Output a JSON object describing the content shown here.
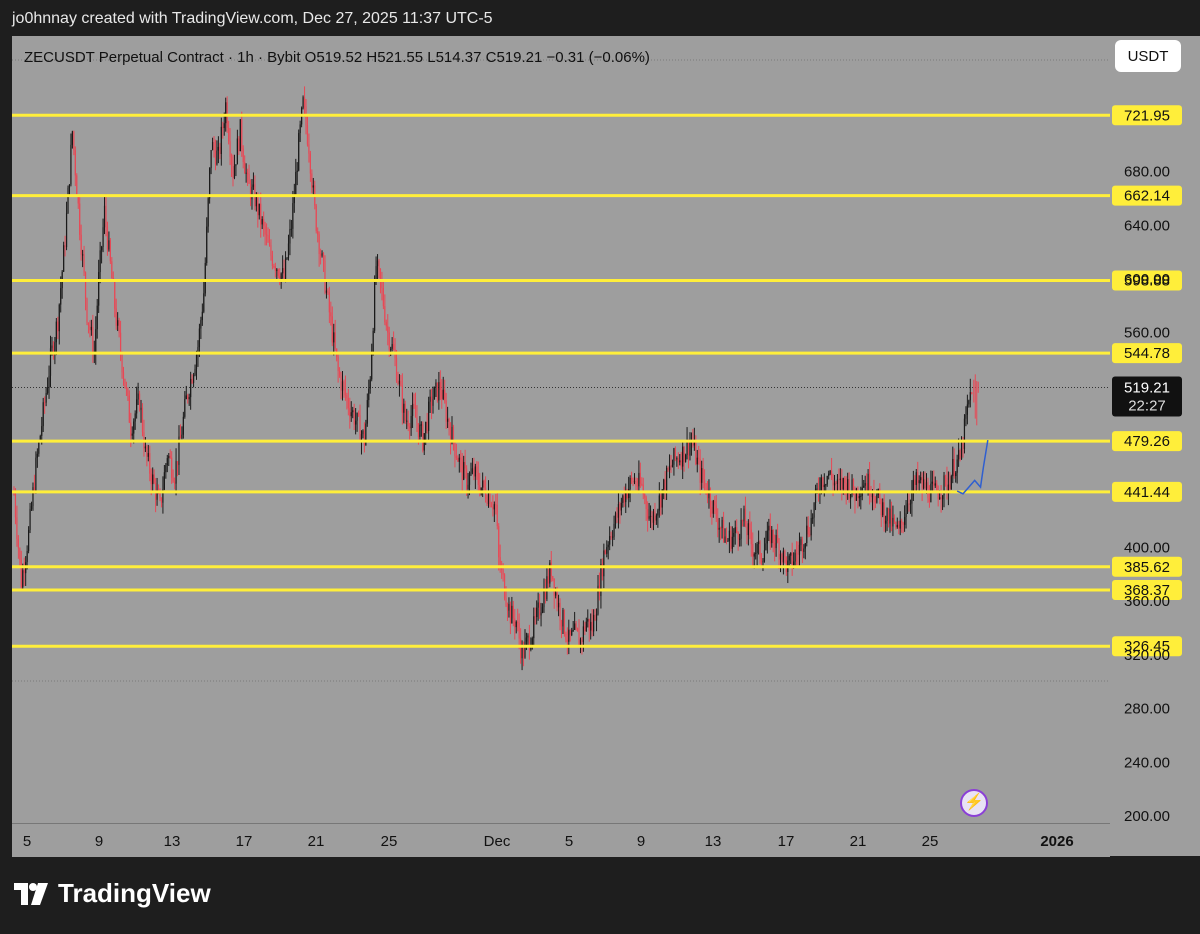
{
  "header": {
    "text": "jo0hnnay created with TradingView.com, Dec 27, 2025 11:37 UTC-5"
  },
  "symbol_line": {
    "text": "ZECUSDT Perpetual Contract · 1h · Bybit   O519.52   H521.55   L514.37   C519.21   −0.31 (−0.06%)"
  },
  "currency_button": {
    "label": "USDT"
  },
  "footer": {
    "brand": "TradingView"
  },
  "icons": {
    "bolt": "lightning-bolt-icon",
    "logo": "tradingview-logo-icon"
  },
  "colors": {
    "plot_bg": "#9e9e9e",
    "level_line": "#ffee3a",
    "candle_up": "#1a1a1a",
    "candle_down": "#e84855",
    "projection": "#2f5fd0",
    "price_tag_bg": "#111111"
  },
  "chart_data": {
    "type": "candlestick",
    "symbol": "ZECUSDT",
    "interval": "1h",
    "exchange": "Bybit",
    "ylim": [
      200,
      760
    ],
    "yticks": [
      "680.00",
      "640.00",
      "600.00",
      "560.00",
      "400.00",
      "360.00",
      "320.00",
      "280.00",
      "240.00",
      "200.00"
    ],
    "xticks": [
      "5",
      "9",
      "13",
      "17",
      "21",
      "25",
      "Dec",
      "5",
      "9",
      "13",
      "17",
      "21",
      "25",
      "2026"
    ],
    "levels": [
      "721.95",
      "662.14",
      "598.88",
      "544.78",
      "479.26",
      "441.44",
      "385.62",
      "368.37",
      "326.45"
    ],
    "last_price": {
      "value": "519.21",
      "countdown": "22:27"
    },
    "ohlc": {
      "open": 519.52,
      "high": 521.55,
      "low": 514.37,
      "close": 519.21,
      "change": -0.31,
      "change_pct": -0.06
    },
    "price_path": [
      [
        0,
        440
      ],
      [
        5,
        375
      ],
      [
        10,
        410
      ],
      [
        15,
        460
      ],
      [
        20,
        500
      ],
      [
        25,
        540
      ],
      [
        30,
        570
      ],
      [
        35,
        630
      ],
      [
        40,
        710
      ],
      [
        45,
        640
      ],
      [
        50,
        575
      ],
      [
        55,
        545
      ],
      [
        58,
        600
      ],
      [
        62,
        650
      ],
      [
        66,
        610
      ],
      [
        70,
        570
      ],
      [
        75,
        530
      ],
      [
        80,
        490
      ],
      [
        86,
        510
      ],
      [
        90,
        470
      ],
      [
        95,
        450
      ],
      [
        100,
        430
      ],
      [
        105,
        470
      ],
      [
        110,
        455
      ],
      [
        114,
        480
      ],
      [
        118,
        510
      ],
      [
        120,
        520
      ],
      [
        126,
        550
      ],
      [
        130,
        590
      ],
      [
        135,
        700
      ],
      [
        140,
        690
      ],
      [
        145,
        730
      ],
      [
        150,
        680
      ],
      [
        155,
        710
      ],
      [
        160,
        670
      ],
      [
        165,
        660
      ],
      [
        170,
        640
      ],
      [
        175,
        620
      ],
      [
        180,
        610
      ],
      [
        185,
        600
      ],
      [
        190,
        640
      ],
      [
        195,
        700
      ],
      [
        198,
        730
      ],
      [
        202,
        700
      ],
      [
        206,
        650
      ],
      [
        210,
        620
      ],
      [
        214,
        590
      ],
      [
        218,
        560
      ],
      [
        222,
        530
      ],
      [
        228,
        510
      ],
      [
        232,
        500
      ],
      [
        236,
        490
      ],
      [
        240,
        480
      ],
      [
        244,
        530
      ],
      [
        248,
        610
      ],
      [
        252,
        590
      ],
      [
        256,
        560
      ],
      [
        260,
        545
      ],
      [
        264,
        520
      ],
      [
        268,
        495
      ],
      [
        274,
        500
      ],
      [
        280,
        480
      ],
      [
        286,
        510
      ],
      [
        292,
        520
      ],
      [
        298,
        490
      ],
      [
        302,
        475
      ],
      [
        306,
        460
      ],
      [
        310,
        450
      ],
      [
        315,
        455
      ],
      [
        320,
        445
      ],
      [
        325,
        440
      ],
      [
        330,
        430
      ],
      [
        332,
        390
      ],
      [
        336,
        370
      ],
      [
        340,
        350
      ],
      [
        344,
        345
      ],
      [
        348,
        320
      ],
      [
        352,
        330
      ],
      [
        356,
        340
      ],
      [
        360,
        355
      ],
      [
        364,
        370
      ],
      [
        368,
        385
      ],
      [
        372,
        360
      ],
      [
        376,
        345
      ],
      [
        380,
        330
      ],
      [
        384,
        335
      ],
      [
        388,
        330
      ],
      [
        392,
        345
      ],
      [
        396,
        340
      ],
      [
        400,
        365
      ],
      [
        404,
        395
      ],
      [
        408,
        410
      ],
      [
        412,
        420
      ],
      [
        418,
        440
      ],
      [
        424,
        450
      ],
      [
        430,
        445
      ],
      [
        436,
        420
      ],
      [
        442,
        435
      ],
      [
        448,
        455
      ],
      [
        452,
        465
      ],
      [
        458,
        470
      ],
      [
        464,
        480
      ],
      [
        470,
        455
      ],
      [
        476,
        440
      ],
      [
        482,
        420
      ],
      [
        488,
        405
      ],
      [
        494,
        410
      ],
      [
        500,
        420
      ],
      [
        506,
        400
      ],
      [
        512,
        395
      ],
      [
        518,
        410
      ],
      [
        524,
        400
      ],
      [
        530,
        385
      ],
      [
        536,
        395
      ],
      [
        540,
        405
      ],
      [
        546,
        420
      ],
      [
        552,
        450
      ],
      [
        558,
        455
      ],
      [
        564,
        445
      ],
      [
        570,
        448
      ],
      [
        576,
        440
      ],
      [
        582,
        450
      ],
      [
        588,
        445
      ],
      [
        594,
        430
      ],
      [
        600,
        420
      ],
      [
        606,
        410
      ],
      [
        612,
        435
      ],
      [
        618,
        448
      ],
      [
        624,
        445
      ],
      [
        630,
        440
      ],
      [
        636,
        445
      ],
      [
        640,
        448
      ],
      [
        644,
        462
      ],
      [
        648,
        465
      ],
      [
        652,
        495
      ],
      [
        656,
        520
      ]
    ],
    "projection_path": [
      [
        646,
        442
      ],
      [
        650,
        440
      ],
      [
        654,
        445
      ],
      [
        658,
        450
      ],
      [
        662,
        445
      ],
      [
        664,
        460
      ],
      [
        667,
        480
      ]
    ]
  }
}
